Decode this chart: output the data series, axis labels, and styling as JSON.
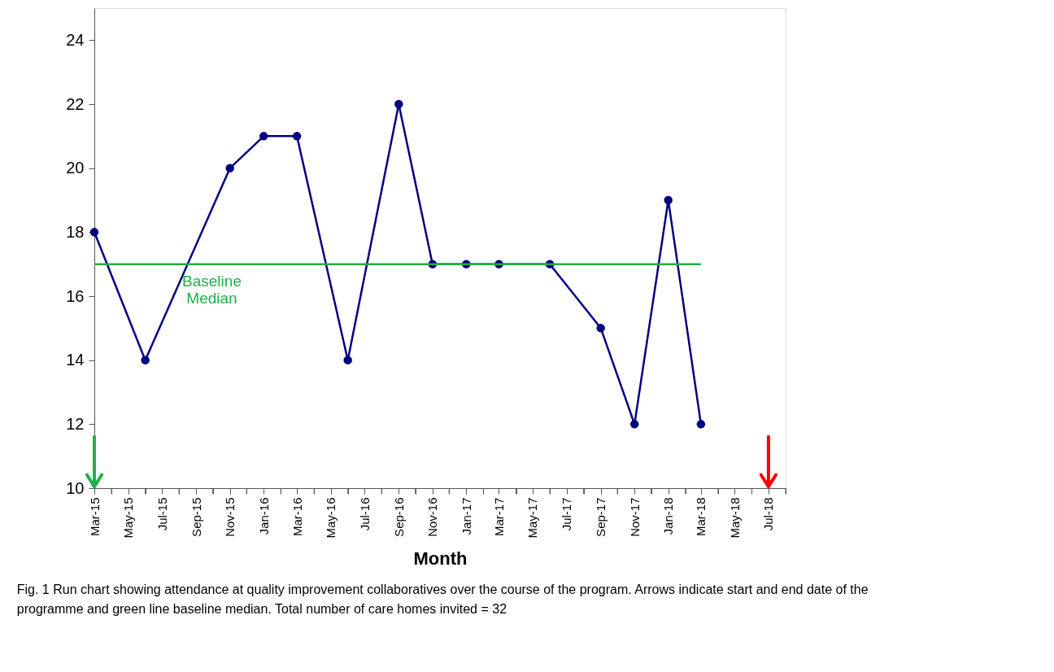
{
  "chart_data": {
    "type": "line",
    "xlabel": "Month",
    "x": [
      "2015-03",
      "2015-06",
      "2015-11",
      "2016-01",
      "2016-03",
      "2016-06",
      "2016-09",
      "2016-11",
      "2017-01",
      "2017-03",
      "2017-06",
      "2017-09",
      "2017-11",
      "2018-01",
      "2018-03"
    ],
    "series": [
      {
        "color": "#000080",
        "values": [
          18,
          14,
          20,
          21,
          21,
          14,
          22,
          17,
          17,
          17,
          17,
          15,
          12,
          19,
          12
        ],
        "marker": "circle"
      },
      {
        "type": "line",
        "color": "#1fb04b",
        "x": [
          "2015-03",
          "2018-03"
        ],
        "values": [
          17,
          17
        ],
        "marker": "none"
      }
    ],
    "ref_lines": [
      {
        "axis": "x",
        "value": "2015-03",
        "color": "#1fb04b"
      },
      {
        "axis": "x",
        "value": "2018-07",
        "color": "#ff0000"
      }
    ],
    "annotations": [
      "Baseline Median",
      "Fig. 1 Run chart showing attendance at quality improvement collaboratives over the course of the program. Arrows indicate start and end date of the programme and green line baseline median. Total number of care homes invited = 32"
    ],
    "xlim": [
      "2015-03",
      "2018-08"
    ],
    "xticks": [
      {
        "value": "2015-03",
        "label": "Mar-15"
      },
      {
        "value": "2015-04",
        "label": null
      },
      {
        "value": "2015-05",
        "label": "May-15"
      },
      {
        "value": "2015-06",
        "label": null
      },
      {
        "value": "2015-07",
        "label": "Jul-15"
      },
      {
        "value": "2015-08",
        "label": null
      },
      {
        "value": "2015-09",
        "label": "Sep-15"
      },
      {
        "value": "2015-10",
        "label": null
      },
      {
        "value": "2015-11",
        "label": "Nov-15"
      },
      {
        "value": "2015-12",
        "label": null
      },
      {
        "value": "2016-01",
        "label": "Jan-16"
      },
      {
        "value": "2016-02",
        "label": null
      },
      {
        "value": "2016-03",
        "label": "Mar-16"
      },
      {
        "value": "2016-04",
        "label": null
      },
      {
        "value": "2016-05",
        "label": "May-16"
      },
      {
        "value": "2016-06",
        "label": null
      },
      {
        "value": "2016-07",
        "label": "Jul-16"
      },
      {
        "value": "2016-08",
        "label": null
      },
      {
        "value": "2016-09",
        "label": "Sep-16"
      },
      {
        "value": "2016-10",
        "label": null
      },
      {
        "value": "2016-11",
        "label": "Nov-16"
      },
      {
        "value": "2016-12",
        "label": null
      },
      {
        "value": "2017-01",
        "label": "Jan-17"
      },
      {
        "value": "2017-02",
        "label": null
      },
      {
        "value": "2017-03",
        "label": "Mar-17"
      },
      {
        "value": "2017-04",
        "label": null
      },
      {
        "value": "2017-05",
        "label": "May-17"
      },
      {
        "value": "2017-06",
        "label": null
      },
      {
        "value": "2017-07",
        "label": "Jul-17"
      },
      {
        "value": "2017-08",
        "label": null
      },
      {
        "value": "2017-09",
        "label": "Sep-17"
      },
      {
        "value": "2017-10",
        "label": null
      },
      {
        "value": "2017-11",
        "label": "Nov-17"
      },
      {
        "value": "2017-12",
        "label": null
      },
      {
        "value": "2018-01",
        "label": "Jan-18"
      },
      {
        "value": "2018-02",
        "label": null
      },
      {
        "value": "2018-03",
        "label": "Mar-18"
      },
      {
        "value": "2018-04",
        "label": null
      },
      {
        "value": "2018-05",
        "label": "May-18"
      },
      {
        "value": "2018-06",
        "label": null
      },
      {
        "value": "2018-07",
        "label": "Jul-18"
      },
      {
        "value": "2018-08",
        "label": null
      }
    ],
    "ylim": [
      10,
      25
    ],
    "yticks": [
      10,
      12,
      14,
      16,
      18,
      20,
      22,
      24
    ],
    "grid": false
  }
}
